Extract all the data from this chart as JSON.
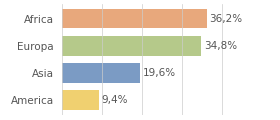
{
  "categories": [
    "Africa",
    "Europa",
    "Asia",
    "America"
  ],
  "values": [
    36.2,
    34.8,
    19.6,
    9.4
  ],
  "labels": [
    "36,2%",
    "34,8%",
    "19,6%",
    "9,4%"
  ],
  "bar_colors": [
    "#e8a87c",
    "#b5c98a",
    "#7b9bc4",
    "#f0d070"
  ],
  "background_color": "#ffffff",
  "xlim": [
    0,
    46
  ],
  "label_fontsize": 7.5,
  "category_fontsize": 7.5,
  "bar_height": 0.72,
  "label_color": "#555555",
  "category_color": "#555555",
  "bottom_spine_color": "#cccccc",
  "vertical_line_color": "#cccccc"
}
